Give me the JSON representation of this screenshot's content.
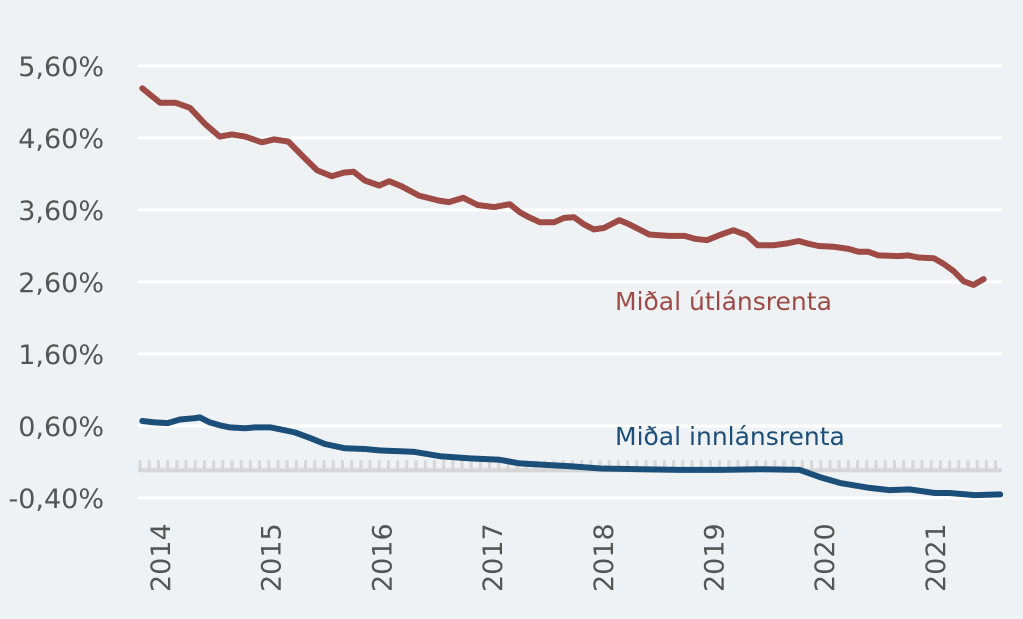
{
  "chart_data": {
    "type": "line",
    "title": "",
    "xlabel": "",
    "ylabel": "",
    "ylim": [
      -0.4,
      5.6
    ],
    "y_ticks": [
      "5,60%",
      "4,60%",
      "3,60%",
      "2,60%",
      "1,60%",
      "0,60%",
      "-0,40%"
    ],
    "y_tick_values": [
      5.6,
      4.6,
      3.6,
      2.6,
      1.6,
      0.6,
      -0.4
    ],
    "x_ticks": [
      "2014",
      "2015",
      "2016",
      "2017",
      "2018",
      "2019",
      "2020",
      "2021"
    ],
    "x_tick_values": [
      2014,
      2015,
      2016,
      2017,
      2018,
      2019,
      2020,
      2021
    ],
    "xlim": [
      2013.75,
      2021.75
    ],
    "grid": true,
    "colors": {
      "lending": "#9e4b45",
      "deposit": "#1b4f7a",
      "grid": "#ffffff",
      "zero_band": "#d6d6d6",
      "background": "#eff2f5"
    },
    "series": [
      {
        "name": "Miðal útlánsrenta",
        "x": [
          2013.84,
          2014.0,
          2014.14,
          2014.27,
          2014.41,
          2014.54,
          2014.65,
          2014.77,
          2014.92,
          2015.03,
          2015.16,
          2015.3,
          2015.42,
          2015.55,
          2015.66,
          2015.75,
          2015.85,
          2015.98,
          2016.07,
          2016.18,
          2016.34,
          2016.52,
          2016.61,
          2016.74,
          2016.87,
          2017.02,
          2017.16,
          2017.25,
          2017.32,
          2017.43,
          2017.56,
          2017.65,
          2017.74,
          2017.83,
          2017.92,
          2018.01,
          2018.15,
          2018.24,
          2018.33,
          2018.42,
          2018.51,
          2018.6,
          2018.74,
          2018.83,
          2018.94,
          2019.07,
          2019.18,
          2019.3,
          2019.4,
          2019.54,
          2019.68,
          2019.77,
          2019.86,
          2019.95,
          2020.08,
          2020.22,
          2020.31,
          2020.4,
          2020.49,
          2020.67,
          2020.76,
          2020.85,
          2020.99,
          2021.08,
          2021.17,
          2021.26,
          2021.35,
          2021.44
        ],
        "values": [
          5.29,
          5.09,
          5.09,
          5.02,
          4.79,
          4.62,
          4.65,
          4.62,
          4.54,
          4.58,
          4.55,
          4.33,
          4.15,
          4.07,
          4.12,
          4.13,
          4.01,
          3.94,
          4.0,
          3.93,
          3.8,
          3.73,
          3.71,
          3.77,
          3.67,
          3.64,
          3.68,
          3.57,
          3.51,
          3.43,
          3.43,
          3.49,
          3.5,
          3.4,
          3.33,
          3.35,
          3.46,
          3.4,
          3.33,
          3.26,
          3.25,
          3.24,
          3.24,
          3.2,
          3.18,
          3.26,
          3.32,
          3.25,
          3.11,
          3.11,
          3.14,
          3.17,
          3.13,
          3.1,
          3.09,
          3.06,
          3.02,
          3.02,
          2.97,
          2.96,
          2.97,
          2.94,
          2.93,
          2.85,
          2.75,
          2.61,
          2.56,
          2.64
        ]
      },
      {
        "name": "Miðal innlánsrenta",
        "x": [
          2013.84,
          2013.95,
          2014.07,
          2014.18,
          2014.32,
          2014.36,
          2014.45,
          2014.54,
          2014.63,
          2014.77,
          2014.86,
          2015.0,
          2015.13,
          2015.22,
          2015.36,
          2015.49,
          2015.67,
          2015.85,
          2015.99,
          2016.17,
          2016.3,
          2016.53,
          2016.8,
          2017.07,
          2017.25,
          2017.48,
          2017.71,
          2017.98,
          2018.34,
          2018.7,
          2019.06,
          2019.42,
          2019.78,
          2019.96,
          2020.14,
          2020.41,
          2020.59,
          2020.77,
          2021.0,
          2021.13,
          2021.36,
          2021.59
        ],
        "values": [
          0.67,
          0.65,
          0.64,
          0.69,
          0.71,
          0.72,
          0.65,
          0.61,
          0.58,
          0.57,
          0.58,
          0.58,
          0.54,
          0.51,
          0.43,
          0.35,
          0.29,
          0.28,
          0.26,
          0.25,
          0.24,
          0.18,
          0.15,
          0.13,
          0.08,
          0.06,
          0.04,
          0.01,
          0.0,
          -0.01,
          -0.01,
          0.0,
          -0.01,
          -0.11,
          -0.19,
          -0.26,
          -0.29,
          -0.28,
          -0.33,
          -0.33,
          -0.36,
          -0.35
        ]
      }
    ],
    "annotations": [
      {
        "text": "Miðal útlánsrenta",
        "series": "lending"
      },
      {
        "text": "Miðal innlánsrenta",
        "series": "deposit"
      }
    ]
  }
}
